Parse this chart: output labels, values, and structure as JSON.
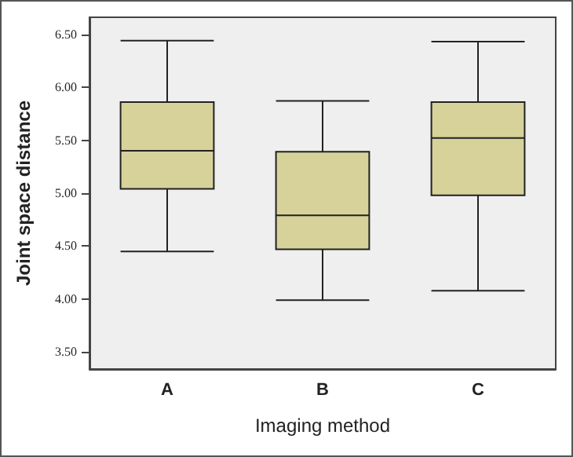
{
  "chart_data": {
    "type": "box",
    "xlabel": "Imaging method",
    "ylabel": "Joint space distance",
    "categories": [
      "A",
      "B",
      "C"
    ],
    "series": [
      {
        "color": "#d6d29a",
        "boxes": [
          {
            "low": 4.45,
            "q1": 5.04,
            "median": 5.4,
            "q3": 5.86,
            "high": 6.44
          },
          {
            "low": 3.99,
            "q1": 4.47,
            "median": 4.79,
            "q3": 5.39,
            "high": 5.87
          },
          {
            "low": 4.08,
            "q1": 4.98,
            "median": 5.52,
            "q3": 5.86,
            "high": 6.43
          }
        ]
      }
    ],
    "ylim": [
      3.34,
      6.66
    ],
    "yticks": [
      {
        "value": 3.5,
        "label": "3.50"
      },
      {
        "value": 4,
        "label": "4.00"
      },
      {
        "value": 4.5,
        "label": "4.50"
      },
      {
        "value": 5,
        "label": "5.00"
      },
      {
        "value": 5.5,
        "label": "5.50"
      },
      {
        "value": 6,
        "label": "6.00"
      },
      {
        "value": 6.5,
        "label": "6.50"
      }
    ],
    "grid": false
  }
}
